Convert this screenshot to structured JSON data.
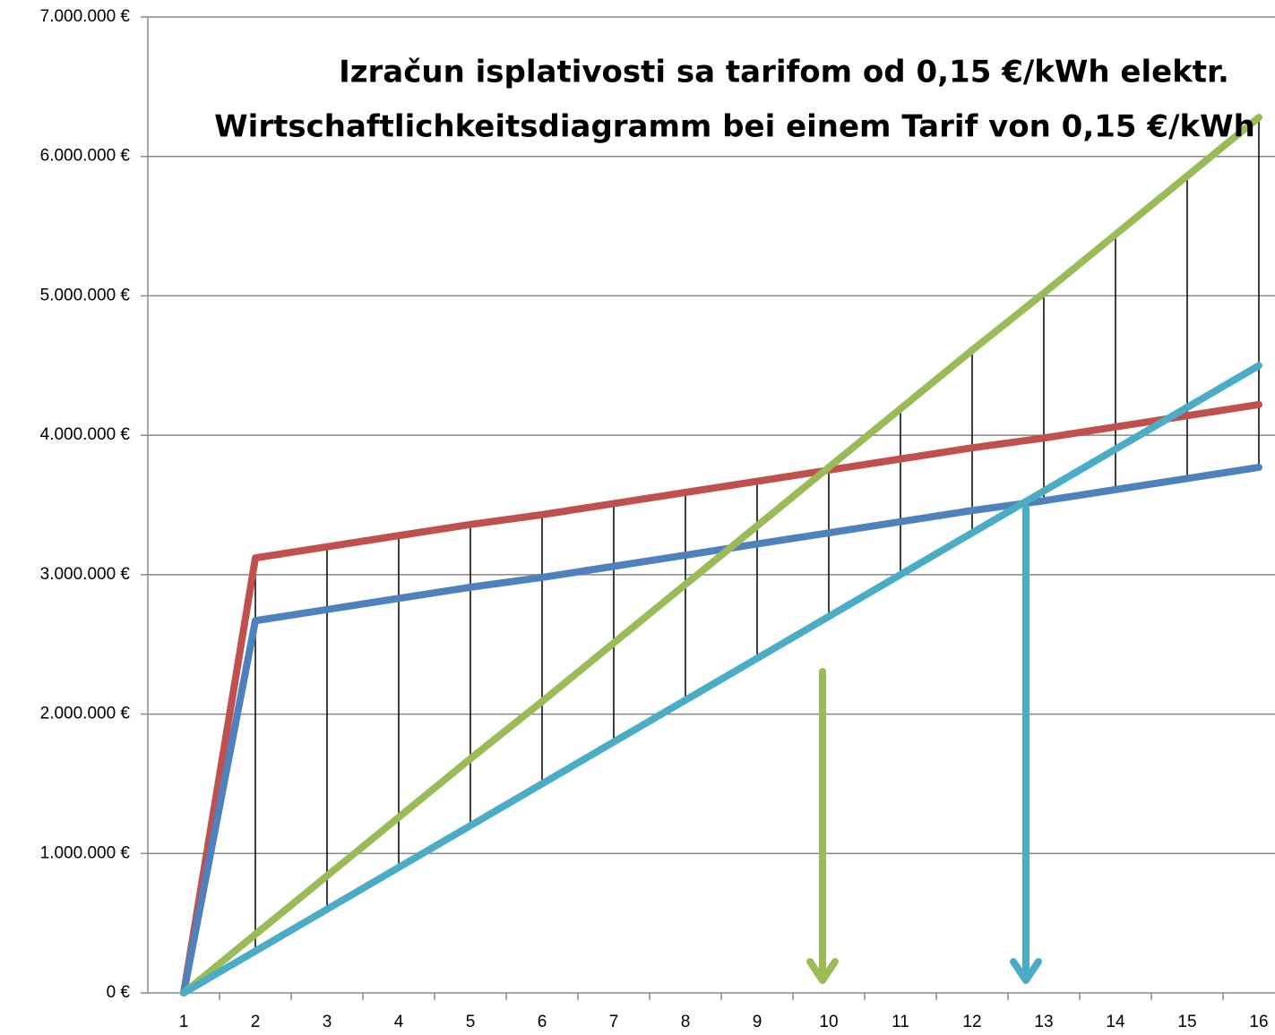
{
  "chart_data": {
    "type": "line",
    "title": "Izračun isplativosti sa tarifom od 0,15 €/kWh elektr.",
    "subtitle": "Wirtschaftlichkeitsdiagramm bei einem Tarif von 0,15 €/kWh",
    "categories": [
      1,
      2,
      3,
      4,
      5,
      6,
      7,
      8,
      9,
      10,
      11,
      12,
      13,
      14,
      15,
      16
    ],
    "series": [
      {
        "color": "#c0504d",
        "values": [
          0,
          3120000,
          3200000,
          3280000,
          3360000,
          3430000,
          3510000,
          3590000,
          3670000,
          3750000,
          3830000,
          3910000,
          3980000,
          4060000,
          4140000,
          4220000
        ]
      },
      {
        "color": "#4f81bd",
        "values": [
          0,
          2670000,
          2750000,
          2830000,
          2910000,
          2980000,
          3060000,
          3140000,
          3220000,
          3300000,
          3380000,
          3460000,
          3530000,
          3610000,
          3690000,
          3770000
        ]
      },
      {
        "color": "#9bbb59",
        "values": [
          0,
          420000,
          840000,
          1260000,
          1680000,
          2090000,
          2510000,
          2930000,
          3350000,
          3770000,
          4190000,
          4610000,
          5020000,
          5440000,
          5860000,
          6280000
        ]
      },
      {
        "color": "#4bacc6",
        "values": [
          0,
          300000,
          600000,
          900000,
          1200000,
          1500000,
          1800000,
          2100000,
          2400000,
          2700000,
          3000000,
          3300000,
          3600000,
          3900000,
          4200000,
          4500000
        ]
      }
    ],
    "ylim": [
      0,
      7000000
    ],
    "yticks": [
      {
        "value": 0,
        "label": "0 €"
      },
      {
        "value": 1000000,
        "label": "1.000.000 €"
      },
      {
        "value": 2000000,
        "label": "2.000.000 €"
      },
      {
        "value": 3000000,
        "label": "3.000.000 €"
      },
      {
        "value": 4000000,
        "label": "4.000.000 €"
      },
      {
        "value": 5000000,
        "label": "5.000.000 €"
      },
      {
        "value": 6000000,
        "label": "6.000.000 €"
      },
      {
        "value": 7000000,
        "label": "7.000.000 €"
      }
    ],
    "grid": true,
    "high_low_lines": true
  }
}
